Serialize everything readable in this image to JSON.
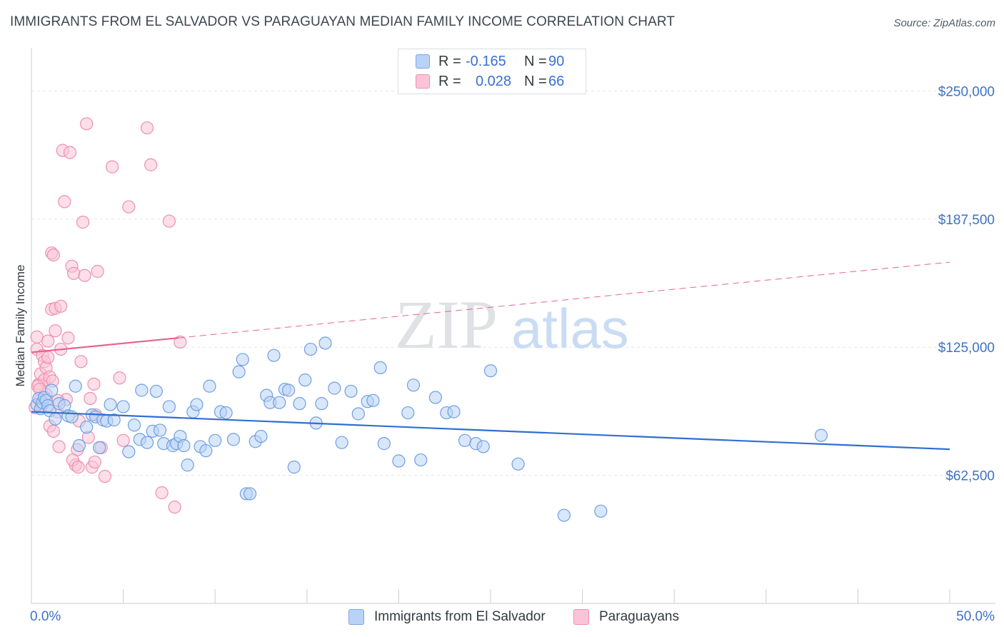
{
  "header": {
    "title": "IMMIGRANTS FROM EL SALVADOR VS PARAGUAYAN MEDIAN FAMILY INCOME CORRELATION CHART",
    "source": "Source: ZipAtlas.com"
  },
  "legend": {
    "r_label": "R =",
    "n_label": "N =",
    "series": [
      {
        "r": "-0.165",
        "n": "90"
      },
      {
        "r": "0.028",
        "n": "66"
      }
    ]
  },
  "bottom_legend": [
    "Immigrants from El Salvador",
    "Paraguayans"
  ],
  "watermark": {
    "part1": "ZIP",
    "part2": "atlas"
  },
  "colors": {
    "blue_fill": "#b9d3f6",
    "blue_stroke": "#6f9fe3",
    "blue_line": "#2f6fd0",
    "pink_fill": "#fac4d6",
    "pink_stroke": "#ee8fb0",
    "pink_line": "#e8648f",
    "axis_text": "#3e72c9",
    "grid": "#e2e5e8"
  },
  "chart_data": {
    "type": "scatter",
    "title": "IMMIGRANTS FROM EL SALVADOR VS PARAGUAYAN MEDIAN FAMILY INCOME CORRELATION CHART",
    "xlabel": "",
    "ylabel": "Median Family Income",
    "xlim": [
      0,
      50
    ],
    "ylim": [
      0,
      270000
    ],
    "x_tick_labels": [
      "0.0%",
      "50.0%"
    ],
    "y_ticks": [
      62500,
      125000,
      187500,
      250000
    ],
    "y_tick_labels": [
      "$62,500",
      "$125,000",
      "$187,500",
      "$250,000"
    ],
    "series": [
      {
        "name": "Immigrants from El Salvador",
        "r": -0.165,
        "n": 90,
        "trend": {
          "x": [
            0,
            50
          ],
          "y": [
            93500,
            75200
          ],
          "solid_to": 50
        },
        "points": [
          [
            0.3,
            97000
          ],
          [
            0.4,
            100000
          ],
          [
            0.5,
            95000
          ],
          [
            0.6,
            98000
          ],
          [
            0.7,
            100500
          ],
          [
            0.8,
            99000
          ],
          [
            0.9,
            96500
          ],
          [
            1.0,
            94000
          ],
          [
            1.1,
            104000
          ],
          [
            1.3,
            90000
          ],
          [
            1.5,
            97500
          ],
          [
            1.8,
            96500
          ],
          [
            2.0,
            91500
          ],
          [
            2.2,
            91000
          ],
          [
            2.4,
            106000
          ],
          [
            2.6,
            77000
          ],
          [
            3.0,
            86000
          ],
          [
            3.3,
            92000
          ],
          [
            3.5,
            91000
          ],
          [
            3.7,
            76000
          ],
          [
            3.9,
            89500
          ],
          [
            4.1,
            89000
          ],
          [
            4.3,
            97000
          ],
          [
            4.5,
            89500
          ],
          [
            5.0,
            96000
          ],
          [
            5.3,
            74000
          ],
          [
            5.6,
            87000
          ],
          [
            5.9,
            80000
          ],
          [
            6.0,
            104000
          ],
          [
            6.3,
            78500
          ],
          [
            6.6,
            84000
          ],
          [
            6.8,
            103500
          ],
          [
            7.0,
            84500
          ],
          [
            7.2,
            78000
          ],
          [
            7.5,
            96000
          ],
          [
            7.7,
            77000
          ],
          [
            7.9,
            78000
          ],
          [
            8.1,
            81500
          ],
          [
            8.3,
            77000
          ],
          [
            8.5,
            67500
          ],
          [
            8.8,
            93500
          ],
          [
            9.0,
            97000
          ],
          [
            9.2,
            76500
          ],
          [
            9.5,
            74500
          ],
          [
            9.7,
            106000
          ],
          [
            10.0,
            79500
          ],
          [
            10.3,
            93500
          ],
          [
            10.6,
            93000
          ],
          [
            11.0,
            80000
          ],
          [
            11.3,
            113000
          ],
          [
            11.5,
            119000
          ],
          [
            11.7,
            53500
          ],
          [
            11.9,
            53500
          ],
          [
            12.2,
            79000
          ],
          [
            12.5,
            81500
          ],
          [
            12.8,
            101500
          ],
          [
            13.0,
            98000
          ],
          [
            13.2,
            121000
          ],
          [
            13.5,
            98000
          ],
          [
            13.8,
            104500
          ],
          [
            14.0,
            104000
          ],
          [
            14.3,
            66500
          ],
          [
            14.6,
            97500
          ],
          [
            14.9,
            109000
          ],
          [
            15.2,
            124000
          ],
          [
            15.5,
            88000
          ],
          [
            15.8,
            97500
          ],
          [
            16.0,
            127000
          ],
          [
            16.5,
            105000
          ],
          [
            16.9,
            78500
          ],
          [
            17.4,
            103500
          ],
          [
            17.8,
            92500
          ],
          [
            18.3,
            98500
          ],
          [
            18.6,
            99000
          ],
          [
            19.0,
            115000
          ],
          [
            19.2,
            78000
          ],
          [
            20.0,
            69500
          ],
          [
            20.5,
            93000
          ],
          [
            20.8,
            106500
          ],
          [
            21.2,
            70000
          ],
          [
            22.0,
            100500
          ],
          [
            22.6,
            93000
          ],
          [
            23.0,
            93500
          ],
          [
            23.6,
            79500
          ],
          [
            24.2,
            78000
          ],
          [
            24.6,
            76500
          ],
          [
            25.0,
            113500
          ],
          [
            26.5,
            68000
          ],
          [
            29.0,
            43000
          ],
          [
            31.0,
            45000
          ],
          [
            43.0,
            82000
          ]
        ]
      },
      {
        "name": "Paraguayans",
        "r": 0.028,
        "n": 66,
        "trend": {
          "x": [
            0,
            50
          ],
          "y": [
            122500,
            166500
          ],
          "solid_to": 8
        },
        "points": [
          [
            0.2,
            95500
          ],
          [
            0.3,
            124000
          ],
          [
            0.3,
            130000
          ],
          [
            0.4,
            107000
          ],
          [
            0.5,
            112000
          ],
          [
            0.5,
            99500
          ],
          [
            0.6,
            121000
          ],
          [
            0.6,
            97000
          ],
          [
            0.7,
            118000
          ],
          [
            0.7,
            109000
          ],
          [
            0.8,
            115000
          ],
          [
            0.8,
            102000
          ],
          [
            0.9,
            128000
          ],
          [
            0.9,
            120000
          ],
          [
            1.0,
            110500
          ],
          [
            1.0,
            86500
          ],
          [
            1.1,
            171000
          ],
          [
            1.1,
            143500
          ],
          [
            1.2,
            170000
          ],
          [
            1.2,
            84000
          ],
          [
            1.3,
            144000
          ],
          [
            1.3,
            133000
          ],
          [
            1.4,
            93500
          ],
          [
            1.5,
            76500
          ],
          [
            1.6,
            124000
          ],
          [
            1.7,
            221000
          ],
          [
            1.8,
            196000
          ],
          [
            1.9,
            99500
          ],
          [
            2.0,
            129500
          ],
          [
            2.1,
            220000
          ],
          [
            2.2,
            164500
          ],
          [
            2.3,
            161000
          ],
          [
            2.4,
            67500
          ],
          [
            2.5,
            75000
          ],
          [
            2.6,
            89000
          ],
          [
            2.7,
            118000
          ],
          [
            2.8,
            186000
          ],
          [
            2.9,
            160000
          ],
          [
            3.0,
            234000
          ],
          [
            3.1,
            81000
          ],
          [
            3.2,
            100000
          ],
          [
            3.3,
            66500
          ],
          [
            3.4,
            107000
          ],
          [
            3.5,
            92000
          ],
          [
            3.6,
            162000
          ],
          [
            3.8,
            76000
          ],
          [
            4.0,
            62000
          ],
          [
            4.4,
            213000
          ],
          [
            4.8,
            110000
          ],
          [
            5.0,
            79500
          ],
          [
            5.3,
            193500
          ],
          [
            6.3,
            232000
          ],
          [
            6.5,
            214000
          ],
          [
            7.1,
            54000
          ],
          [
            7.5,
            186500
          ],
          [
            7.8,
            47000
          ],
          [
            8.1,
            127500
          ],
          [
            0.35,
            106000
          ],
          [
            0.45,
            104500
          ],
          [
            0.55,
            96500
          ],
          [
            1.15,
            108500
          ],
          [
            1.6,
            145000
          ],
          [
            2.25,
            70000
          ],
          [
            2.55,
            66500
          ],
          [
            3.45,
            69000
          ],
          [
            1.45,
            99000
          ]
        ]
      }
    ]
  }
}
